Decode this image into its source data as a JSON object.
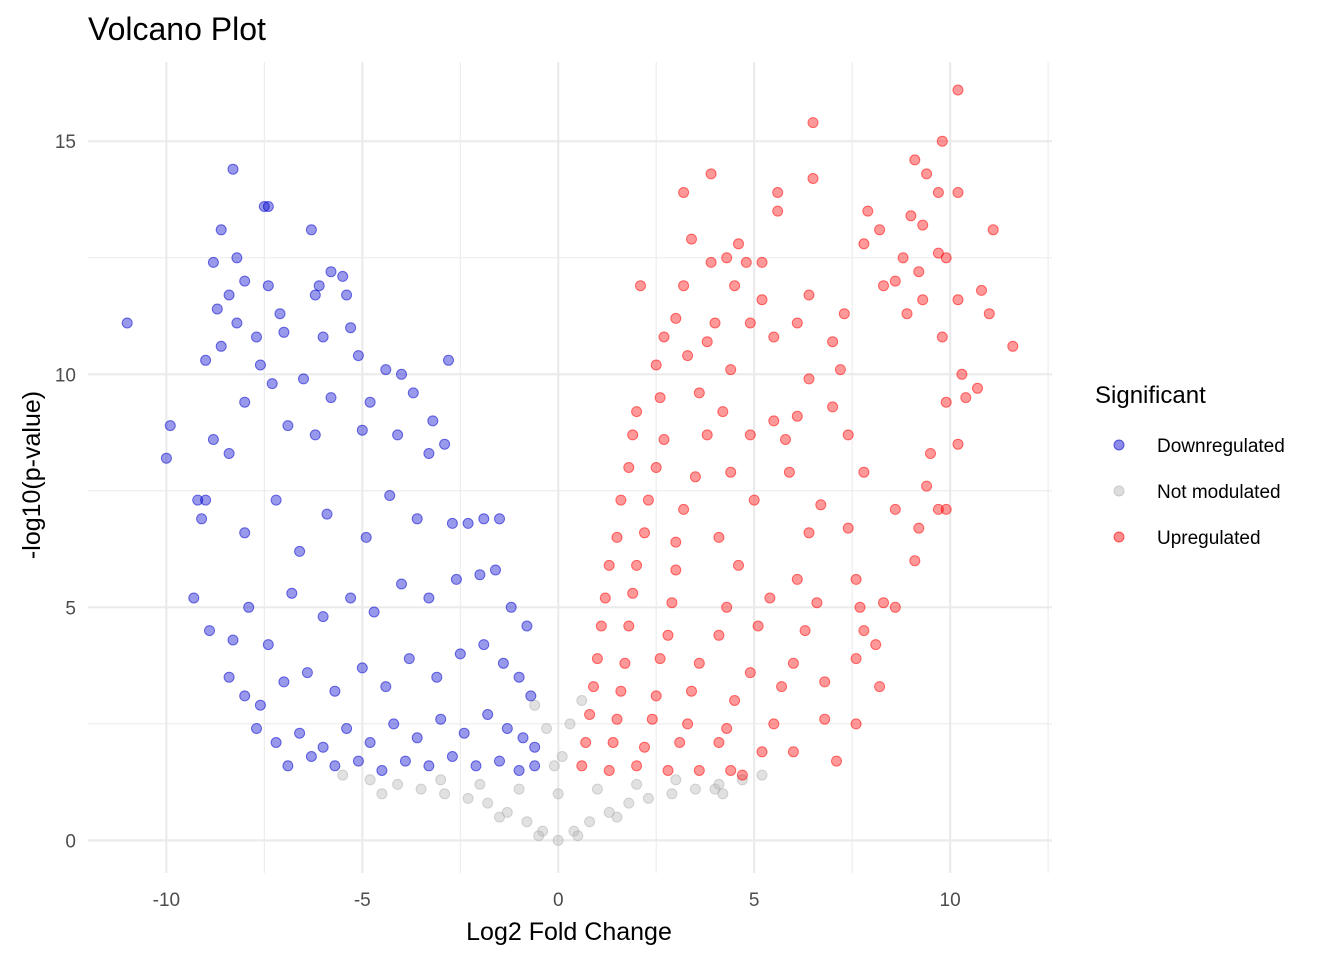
{
  "chart_data": {
    "type": "scatter",
    "title": "Volcano Plot",
    "xlabel": "Log2 Fold Change",
    "ylabel": "-log10(p-value)",
    "xlim": [
      -12,
      12.6
    ],
    "ylim": [
      -0.7,
      16.7
    ],
    "x_ticks": [
      -10,
      -5,
      0,
      5,
      10
    ],
    "x_tick_labels": [
      "-10",
      "-5",
      "0",
      "5",
      "10"
    ],
    "y_ticks": [
      0,
      5,
      10,
      15
    ],
    "y_tick_labels": [
      "0",
      "5",
      "10",
      "15"
    ],
    "grid": true,
    "legend": {
      "title": "Significant",
      "position": "right",
      "items": [
        {
          "label": "Downregulated",
          "color": "#0000CD"
        },
        {
          "label": "Not modulated",
          "color": "#B3B3B3"
        },
        {
          "label": "Upregulated",
          "color": "#FF0000"
        }
      ]
    },
    "series": [
      {
        "name": "Downregulated",
        "color": "#0000CD",
        "points": [
          [
            -11.0,
            11.1
          ],
          [
            -10.0,
            8.2
          ],
          [
            -9.9,
            8.9
          ],
          [
            -8.3,
            14.4
          ],
          [
            -8.6,
            13.1
          ],
          [
            -7.5,
            13.6
          ],
          [
            -7.4,
            13.6
          ],
          [
            -6.3,
            13.1
          ],
          [
            -8.2,
            12.5
          ],
          [
            -8.8,
            12.4
          ],
          [
            -8.0,
            12.0
          ],
          [
            -7.4,
            11.9
          ],
          [
            -6.1,
            11.9
          ],
          [
            -5.8,
            12.2
          ],
          [
            -5.5,
            12.1
          ],
          [
            -6.2,
            11.7
          ],
          [
            -5.4,
            11.7
          ],
          [
            -8.4,
            11.7
          ],
          [
            -8.7,
            11.4
          ],
          [
            -8.2,
            11.1
          ],
          [
            -7.1,
            11.3
          ],
          [
            -7.7,
            10.8
          ],
          [
            -9.0,
            10.3
          ],
          [
            -8.6,
            10.6
          ],
          [
            -7.0,
            10.9
          ],
          [
            -6.0,
            10.8
          ],
          [
            -5.3,
            11.0
          ],
          [
            -2.8,
            10.3
          ],
          [
            -4.4,
            10.1
          ],
          [
            -5.1,
            10.4
          ],
          [
            -7.6,
            10.2
          ],
          [
            -8.0,
            9.4
          ],
          [
            -7.3,
            9.8
          ],
          [
            -6.5,
            9.9
          ],
          [
            -4.0,
            10.0
          ],
          [
            -3.7,
            9.6
          ],
          [
            -4.8,
            9.4
          ],
          [
            -5.8,
            9.5
          ],
          [
            -9.2,
            7.3
          ],
          [
            -9.0,
            7.3
          ],
          [
            -8.8,
            8.6
          ],
          [
            -8.4,
            8.3
          ],
          [
            -6.9,
            8.9
          ],
          [
            -6.2,
            8.7
          ],
          [
            -5.0,
            8.8
          ],
          [
            -4.1,
            8.7
          ],
          [
            -3.2,
            9.0
          ],
          [
            -2.9,
            8.5
          ],
          [
            -3.3,
            8.3
          ],
          [
            -9.1,
            6.9
          ],
          [
            -9.3,
            5.2
          ],
          [
            -8.9,
            4.5
          ],
          [
            -8.0,
            6.6
          ],
          [
            -7.2,
            7.3
          ],
          [
            -6.6,
            6.2
          ],
          [
            -5.9,
            7.0
          ],
          [
            -4.9,
            6.5
          ],
          [
            -4.3,
            7.4
          ],
          [
            -3.6,
            6.9
          ],
          [
            -2.7,
            6.8
          ],
          [
            -2.3,
            6.8
          ],
          [
            -1.9,
            6.9
          ],
          [
            -1.5,
            6.9
          ],
          [
            -8.3,
            4.3
          ],
          [
            -7.9,
            5.0
          ],
          [
            -7.4,
            4.2
          ],
          [
            -6.8,
            5.3
          ],
          [
            -6.0,
            4.8
          ],
          [
            -5.3,
            5.2
          ],
          [
            -4.7,
            4.9
          ],
          [
            -4.0,
            5.5
          ],
          [
            -3.3,
            5.2
          ],
          [
            -2.6,
            5.6
          ],
          [
            -2.0,
            5.7
          ],
          [
            -1.6,
            5.8
          ],
          [
            -1.2,
            5.0
          ],
          [
            -0.8,
            4.6
          ],
          [
            -8.4,
            3.5
          ],
          [
            -8.0,
            3.1
          ],
          [
            -7.6,
            2.9
          ],
          [
            -7.0,
            3.4
          ],
          [
            -6.4,
            3.6
          ],
          [
            -5.7,
            3.2
          ],
          [
            -5.0,
            3.7
          ],
          [
            -4.4,
            3.3
          ],
          [
            -3.8,
            3.9
          ],
          [
            -3.1,
            3.5
          ],
          [
            -2.5,
            4.0
          ],
          [
            -1.9,
            4.2
          ],
          [
            -1.4,
            3.8
          ],
          [
            -1.0,
            3.5
          ],
          [
            -0.7,
            3.1
          ],
          [
            -7.7,
            2.4
          ],
          [
            -7.2,
            2.1
          ],
          [
            -6.6,
            2.3
          ],
          [
            -6.0,
            2.0
          ],
          [
            -5.4,
            2.4
          ],
          [
            -4.8,
            2.1
          ],
          [
            -4.2,
            2.5
          ],
          [
            -3.6,
            2.2
          ],
          [
            -3.0,
            2.6
          ],
          [
            -2.4,
            2.3
          ],
          [
            -1.8,
            2.7
          ],
          [
            -1.3,
            2.4
          ],
          [
            -0.9,
            2.2
          ],
          [
            -0.6,
            2.0
          ],
          [
            -6.9,
            1.6
          ],
          [
            -6.3,
            1.8
          ],
          [
            -5.7,
            1.6
          ],
          [
            -5.1,
            1.7
          ],
          [
            -4.5,
            1.5
          ],
          [
            -3.9,
            1.7
          ],
          [
            -3.3,
            1.6
          ],
          [
            -2.7,
            1.8
          ],
          [
            -2.1,
            1.6
          ],
          [
            -1.5,
            1.7
          ],
          [
            -1.0,
            1.5
          ],
          [
            -0.6,
            1.6
          ]
        ]
      },
      {
        "name": "Not modulated",
        "color": "#B3B3B3",
        "points": [
          [
            -5.5,
            1.4
          ],
          [
            -4.8,
            1.3
          ],
          [
            -4.1,
            1.2
          ],
          [
            -3.5,
            1.1
          ],
          [
            -2.9,
            1.0
          ],
          [
            -2.3,
            0.9
          ],
          [
            -1.8,
            0.8
          ],
          [
            -1.3,
            0.6
          ],
          [
            -0.8,
            0.4
          ],
          [
            -0.4,
            0.2
          ],
          [
            0.0,
            0.0
          ],
          [
            0.4,
            0.2
          ],
          [
            0.8,
            0.4
          ],
          [
            1.3,
            0.6
          ],
          [
            1.8,
            0.8
          ],
          [
            2.3,
            0.9
          ],
          [
            2.9,
            1.0
          ],
          [
            3.5,
            1.1
          ],
          [
            4.1,
            1.2
          ],
          [
            4.7,
            1.3
          ],
          [
            5.2,
            1.4
          ],
          [
            -3.0,
            1.3
          ],
          [
            -2.0,
            1.2
          ],
          [
            -1.0,
            1.1
          ],
          [
            0.0,
            1.0
          ],
          [
            1.0,
            1.1
          ],
          [
            2.0,
            1.2
          ],
          [
            3.0,
            1.3
          ],
          [
            -0.6,
            2.9
          ],
          [
            0.6,
            3.0
          ],
          [
            -0.3,
            2.4
          ],
          [
            0.3,
            2.5
          ],
          [
            0.1,
            1.8
          ],
          [
            -0.1,
            1.6
          ],
          [
            4.0,
            1.1
          ],
          [
            4.2,
            1.0
          ],
          [
            -4.5,
            1.0
          ],
          [
            -1.5,
            0.5
          ],
          [
            1.5,
            0.5
          ],
          [
            0.5,
            0.1
          ],
          [
            -0.5,
            0.1
          ]
        ]
      },
      {
        "name": "Upregulated",
        "color": "#FF0000",
        "points": [
          [
            10.2,
            16.1
          ],
          [
            6.5,
            15.4
          ],
          [
            9.8,
            15.0
          ],
          [
            9.1,
            14.6
          ],
          [
            9.4,
            14.3
          ],
          [
            6.5,
            14.2
          ],
          [
            3.9,
            14.3
          ],
          [
            3.2,
            13.9
          ],
          [
            5.6,
            13.9
          ],
          [
            5.6,
            13.5
          ],
          [
            10.2,
            13.9
          ],
          [
            9.7,
            13.9
          ],
          [
            9.0,
            13.4
          ],
          [
            9.3,
            13.2
          ],
          [
            7.9,
            13.5
          ],
          [
            11.1,
            13.1
          ],
          [
            8.2,
            13.1
          ],
          [
            7.8,
            12.8
          ],
          [
            3.4,
            12.9
          ],
          [
            4.6,
            12.8
          ],
          [
            5.2,
            12.4
          ],
          [
            4.3,
            12.5
          ],
          [
            3.9,
            12.4
          ],
          [
            4.8,
            12.4
          ],
          [
            8.8,
            12.5
          ],
          [
            9.9,
            12.5
          ],
          [
            9.7,
            12.6
          ],
          [
            9.2,
            12.2
          ],
          [
            2.1,
            11.9
          ],
          [
            3.2,
            11.9
          ],
          [
            4.5,
            11.9
          ],
          [
            5.2,
            11.6
          ],
          [
            6.4,
            11.7
          ],
          [
            8.3,
            11.9
          ],
          [
            8.6,
            12.0
          ],
          [
            9.3,
            11.6
          ],
          [
            10.2,
            11.6
          ],
          [
            10.8,
            11.8
          ],
          [
            11.0,
            11.3
          ],
          [
            3.0,
            11.2
          ],
          [
            4.0,
            11.1
          ],
          [
            4.9,
            11.1
          ],
          [
            6.1,
            11.1
          ],
          [
            7.3,
            11.3
          ],
          [
            8.9,
            11.3
          ],
          [
            2.7,
            10.8
          ],
          [
            3.8,
            10.7
          ],
          [
            5.5,
            10.8
          ],
          [
            7.0,
            10.7
          ],
          [
            9.8,
            10.8
          ],
          [
            11.6,
            10.6
          ],
          [
            2.5,
            10.2
          ],
          [
            3.3,
            10.4
          ],
          [
            4.4,
            10.1
          ],
          [
            6.4,
            9.9
          ],
          [
            7.2,
            10.1
          ],
          [
            10.3,
            10.0
          ],
          [
            10.7,
            9.7
          ],
          [
            10.4,
            9.5
          ],
          [
            9.9,
            9.4
          ],
          [
            2.0,
            9.2
          ],
          [
            2.6,
            9.5
          ],
          [
            3.6,
            9.6
          ],
          [
            4.2,
            9.2
          ],
          [
            5.5,
            9.0
          ],
          [
            6.1,
            9.1
          ],
          [
            7.0,
            9.3
          ],
          [
            1.9,
            8.7
          ],
          [
            2.7,
            8.6
          ],
          [
            3.8,
            8.7
          ],
          [
            4.9,
            8.7
          ],
          [
            5.8,
            8.6
          ],
          [
            7.4,
            8.7
          ],
          [
            10.2,
            8.5
          ],
          [
            1.8,
            8.0
          ],
          [
            2.5,
            8.0
          ],
          [
            3.5,
            7.8
          ],
          [
            4.4,
            7.9
          ],
          [
            5.9,
            7.9
          ],
          [
            7.8,
            7.9
          ],
          [
            9.5,
            8.3
          ],
          [
            9.4,
            7.6
          ],
          [
            9.7,
            7.1
          ],
          [
            1.6,
            7.3
          ],
          [
            2.3,
            7.3
          ],
          [
            3.2,
            7.1
          ],
          [
            5.0,
            7.3
          ],
          [
            6.7,
            7.2
          ],
          [
            8.6,
            7.1
          ],
          [
            9.9,
            7.1
          ],
          [
            1.5,
            6.5
          ],
          [
            2.2,
            6.6
          ],
          [
            3.0,
            6.4
          ],
          [
            4.1,
            6.5
          ],
          [
            6.4,
            6.6
          ],
          [
            7.4,
            6.7
          ],
          [
            9.2,
            6.7
          ],
          [
            1.3,
            5.9
          ],
          [
            2.0,
            5.9
          ],
          [
            3.0,
            5.8
          ],
          [
            4.6,
            5.9
          ],
          [
            6.1,
            5.6
          ],
          [
            7.6,
            5.6
          ],
          [
            9.1,
            6.0
          ],
          [
            1.2,
            5.2
          ],
          [
            1.9,
            5.3
          ],
          [
            2.9,
            5.1
          ],
          [
            4.3,
            5.0
          ],
          [
            5.4,
            5.2
          ],
          [
            6.6,
            5.1
          ],
          [
            7.7,
            5.0
          ],
          [
            8.3,
            5.1
          ],
          [
            8.6,
            5.0
          ],
          [
            1.1,
            4.6
          ],
          [
            1.8,
            4.6
          ],
          [
            2.8,
            4.4
          ],
          [
            4.1,
            4.4
          ],
          [
            5.1,
            4.6
          ],
          [
            6.3,
            4.5
          ],
          [
            7.8,
            4.5
          ],
          [
            8.1,
            4.2
          ],
          [
            1.0,
            3.9
          ],
          [
            1.7,
            3.8
          ],
          [
            2.6,
            3.9
          ],
          [
            3.6,
            3.8
          ],
          [
            4.9,
            3.6
          ],
          [
            6.0,
            3.8
          ],
          [
            7.6,
            3.9
          ],
          [
            0.9,
            3.3
          ],
          [
            1.6,
            3.2
          ],
          [
            2.5,
            3.1
          ],
          [
            3.4,
            3.2
          ],
          [
            4.5,
            3.0
          ],
          [
            5.7,
            3.3
          ],
          [
            6.8,
            3.4
          ],
          [
            8.2,
            3.3
          ],
          [
            0.8,
            2.7
          ],
          [
            1.5,
            2.6
          ],
          [
            2.4,
            2.6
          ],
          [
            3.3,
            2.5
          ],
          [
            4.3,
            2.4
          ],
          [
            5.5,
            2.5
          ],
          [
            6.8,
            2.6
          ],
          [
            7.6,
            2.5
          ],
          [
            0.7,
            2.1
          ],
          [
            1.4,
            2.1
          ],
          [
            2.2,
            2.0
          ],
          [
            3.1,
            2.1
          ],
          [
            4.1,
            2.1
          ],
          [
            5.2,
            1.9
          ],
          [
            6.0,
            1.9
          ],
          [
            7.1,
            1.7
          ],
          [
            0.6,
            1.6
          ],
          [
            1.3,
            1.5
          ],
          [
            2.0,
            1.6
          ],
          [
            2.8,
            1.5
          ],
          [
            3.6,
            1.5
          ],
          [
            4.4,
            1.5
          ],
          [
            4.7,
            1.4
          ]
        ]
      }
    ]
  }
}
